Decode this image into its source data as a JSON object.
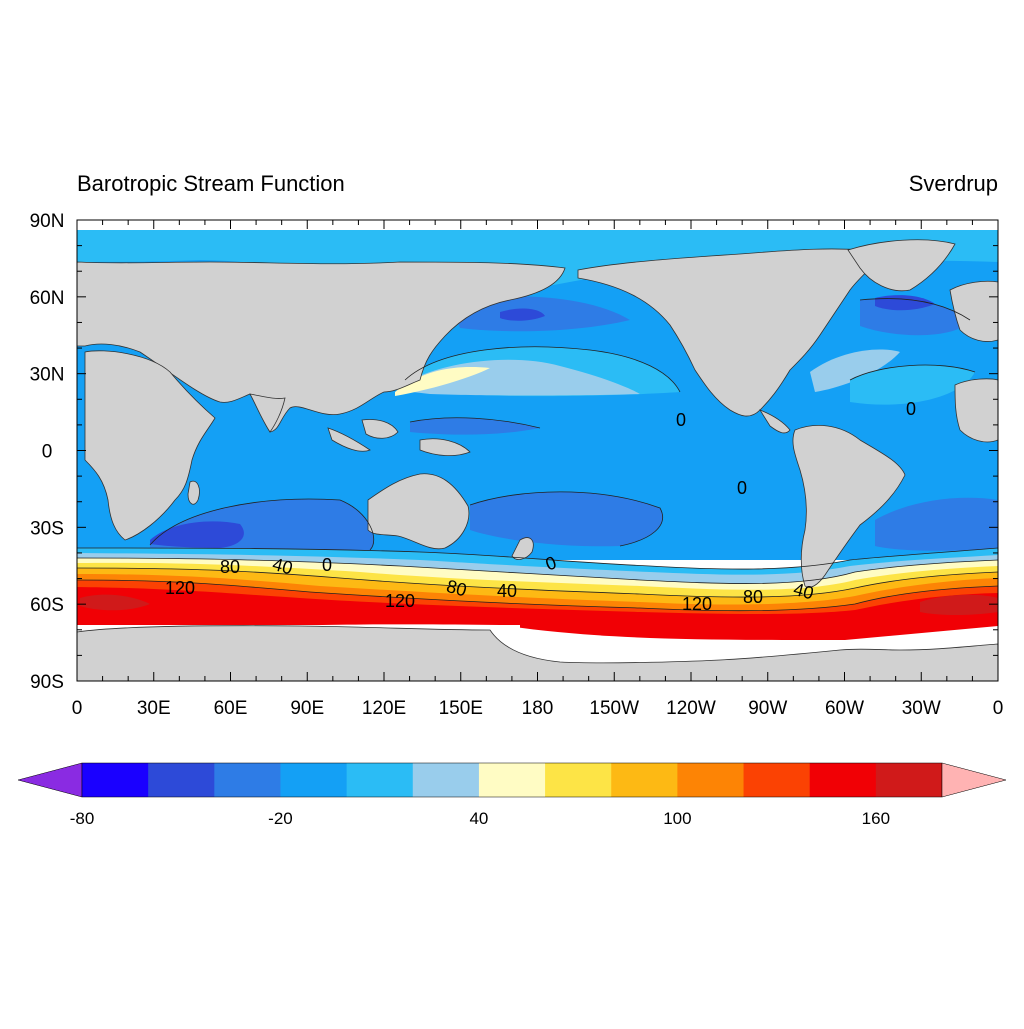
{
  "title_left": "Barotropic Stream Function",
  "title_right": "Sverdrup",
  "colors": {
    "land": "#d1d1d1",
    "missing": "#ffffff",
    "over_low": "#8a2be2",
    "over_high": "#ffb3b3"
  },
  "map": {
    "projection": "cylindrical-equidistant",
    "lon_range": [
      0,
      360
    ],
    "lat_range": [
      -90,
      90
    ],
    "x_tick_labels": [
      "0",
      "30E",
      "60E",
      "90E",
      "120E",
      "150E",
      "180",
      "150W",
      "120W",
      "90W",
      "60W",
      "30W",
      "0"
    ],
    "y_tick_labels": [
      "90N",
      "60N",
      "30N",
      "0",
      "30S",
      "60S",
      "90S"
    ]
  },
  "contour_labels": [
    "80",
    "40",
    "0",
    "120",
    "80",
    "40",
    "120",
    "80",
    "40",
    "0",
    "0",
    "0",
    "120",
    "80",
    "40",
    "0"
  ],
  "colorbar": {
    "colors": [
      "#1a00ff",
      "#2d4ad8",
      "#2e7ce6",
      "#14a0f5",
      "#2bbcf5",
      "#99cdec",
      "#fffcc4",
      "#fde446",
      "#fdb914",
      "#fd8405",
      "#fb4203",
      "#f10005",
      "#d01a1a"
    ],
    "tick_labels": [
      "-80",
      "-20",
      "40",
      "100",
      "160"
    ],
    "level_min": -80,
    "level_step": 20
  }
}
